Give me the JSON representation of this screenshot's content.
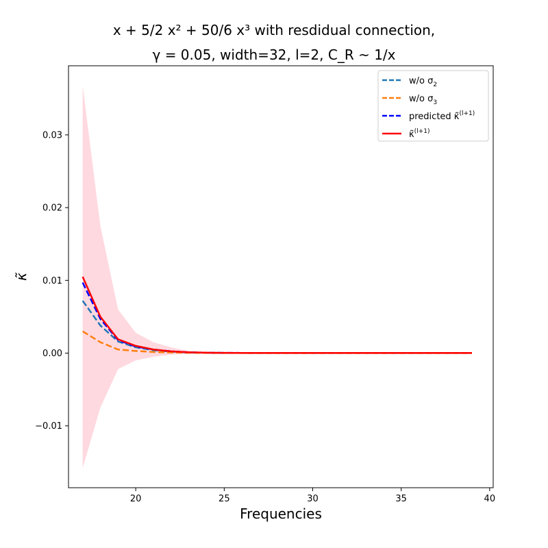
{
  "chart_data": {
    "type": "line",
    "title_line1": "x + 5/2 x² + 50/6 x³ with resdidual connection,",
    "title_line2": "γ = 0.05, width=32, l=2, C_R ~ 1/x",
    "xlabel": "Frequencies",
    "ylabel": "κ̃",
    "xlim": [
      16.2,
      40.2
    ],
    "ylim": [
      -0.0185,
      0.0395
    ],
    "xticks": [
      20,
      25,
      30,
      35,
      40
    ],
    "xtick_labels": [
      "20",
      "25",
      "30",
      "35",
      "40"
    ],
    "yticks": [
      -0.01,
      0.0,
      0.01,
      0.02,
      0.03
    ],
    "ytick_labels": [
      "−0.01",
      "0.00",
      "0.01",
      "0.02",
      "0.03"
    ],
    "x": [
      17,
      18,
      19,
      20,
      21,
      22,
      23,
      24,
      25,
      26,
      27,
      28,
      29,
      30,
      31,
      32,
      33,
      34,
      35,
      36,
      37,
      38,
      39
    ],
    "band": {
      "name": "spread",
      "color": "#ffc0cb",
      "upper": [
        0.0368,
        0.0175,
        0.006,
        0.0028,
        0.0015,
        0.0008,
        0.0003,
        0.00015,
        0.0001,
        8e-05,
        6e-05,
        5e-05,
        5e-05,
        5e-05,
        5e-05,
        5e-05,
        5e-05,
        5e-05,
        5e-05,
        5e-05,
        5e-05,
        5e-05,
        5e-05
      ],
      "lower": [
        -0.0158,
        -0.0075,
        -0.0022,
        -0.001,
        -0.0005,
        -0.0002,
        -0.0001,
        -5e-05,
        -5e-05,
        -5e-05,
        -5e-05,
        -5e-05,
        -5e-05,
        -5e-05,
        -5e-05,
        -5e-05,
        -5e-05,
        -5e-05,
        -5e-05,
        -5e-05,
        -5e-05,
        -5e-05,
        -5e-05
      ]
    },
    "series": [
      {
        "name": "w/o σ2",
        "legend_main": "w/o σ",
        "legend_sub": "2",
        "color": "#1f77b4",
        "dashed": true,
        "values": [
          0.0072,
          0.0038,
          0.0016,
          0.0008,
          0.0004,
          0.0002,
          0.0001,
          5e-05,
          3e-05,
          2e-05,
          1e-05,
          1e-05,
          1e-05,
          1e-05,
          1e-05,
          1e-05,
          1e-05,
          1e-05,
          1e-05,
          1e-05,
          1e-05,
          1e-05,
          1e-05
        ]
      },
      {
        "name": "w/o σ3",
        "legend_main": "w/o σ",
        "legend_sub": "3",
        "color": "#ff7f0e",
        "dashed": true,
        "values": [
          0.003,
          0.0015,
          0.0005,
          0.0003,
          0.00015,
          8e-05,
          4e-05,
          2e-05,
          1e-05,
          1e-05,
          0.0,
          0.0,
          0.0,
          0.0,
          0.0,
          0.0,
          0.0,
          0.0,
          0.0,
          0.0,
          0.0,
          0.0,
          0.0
        ]
      },
      {
        "name": "predicted κ̃(l+1)",
        "legend_main": "predicted κ̃",
        "legend_sub": "(l+1)",
        "color": "#0000ff",
        "dashed": true,
        "values": [
          0.0097,
          0.0047,
          0.0018,
          0.0009,
          0.0005,
          0.00025,
          0.00012,
          6e-05,
          4e-05,
          3e-05,
          2e-05,
          2e-05,
          2e-05,
          2e-05,
          2e-05,
          2e-05,
          2e-05,
          2e-05,
          2e-05,
          2e-05,
          2e-05,
          2e-05,
          2e-05
        ]
      },
      {
        "name": "κ̃(l+1)",
        "legend_main": "κ̃",
        "legend_sub": "(l+1)",
        "color": "#ff0000",
        "dashed": false,
        "values": [
          0.0105,
          0.005,
          0.0019,
          0.001,
          0.0005,
          0.00025,
          0.00012,
          6e-05,
          4e-05,
          3e-05,
          2e-05,
          2e-05,
          2e-05,
          2e-05,
          2e-05,
          2e-05,
          2e-05,
          2e-05,
          2e-05,
          2e-05,
          2e-05,
          2e-05,
          2e-05
        ]
      }
    ],
    "legend_position": "top-right",
    "grid": false
  }
}
